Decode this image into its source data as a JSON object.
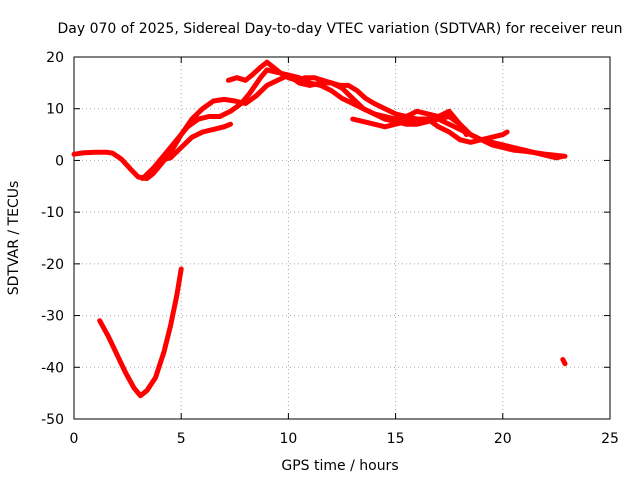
{
  "chart_data": {
    "type": "line",
    "title": "Day 070 of 2025, Sidereal Day-to-day VTEC variation (SDTVAR) for receiver reun",
    "xlabel": "GPS time / hours",
    "ylabel": "SDTVAR / TECUs",
    "xlim": [
      0,
      25
    ],
    "ylim": [
      -50,
      20
    ],
    "xticks": [
      0,
      5,
      10,
      15,
      20,
      25
    ],
    "yticks": [
      -50,
      -40,
      -30,
      -20,
      -10,
      0,
      10,
      20
    ],
    "grid": true,
    "series_color": "#ff0000",
    "series": [
      {
        "name": "trace-1",
        "points": [
          [
            0,
            1.2
          ],
          [
            0.5,
            1.5
          ],
          [
            1,
            1.6
          ],
          [
            1.5,
            1.6
          ],
          [
            1.8,
            1.4
          ],
          [
            2.2,
            0.3
          ],
          [
            2.6,
            -1.5
          ],
          [
            3,
            -3.2
          ],
          [
            3.4,
            -3.5
          ],
          [
            3.7,
            -2.5
          ],
          [
            4,
            -1
          ],
          [
            4.5,
            1.5
          ],
          [
            5,
            5
          ],
          [
            5.5,
            8
          ],
          [
            6,
            10
          ],
          [
            6.5,
            11.5
          ],
          [
            7,
            11.8
          ],
          [
            7.5,
            11.5
          ],
          [
            8,
            11
          ],
          [
            8.5,
            12.5
          ],
          [
            9,
            14.5
          ],
          [
            9.5,
            15.5
          ],
          [
            10,
            16.5
          ],
          [
            10.5,
            16
          ],
          [
            11,
            15
          ],
          [
            11.5,
            14.5
          ],
          [
            12,
            13.5
          ],
          [
            12.5,
            12
          ],
          [
            13,
            11
          ],
          [
            13.5,
            10
          ],
          [
            14,
            9
          ],
          [
            14.5,
            8
          ],
          [
            15,
            7.5
          ],
          [
            15.5,
            7
          ],
          [
            16,
            7
          ],
          [
            16.5,
            7.5
          ],
          [
            17,
            8
          ],
          [
            17.5,
            7
          ],
          [
            18,
            6
          ],
          [
            18.5,
            5
          ],
          [
            19,
            4
          ],
          [
            19.5,
            3
          ],
          [
            20,
            2.5
          ],
          [
            20.5,
            2
          ],
          [
            21,
            1.8
          ],
          [
            21.5,
            1.5
          ],
          [
            22,
            1.2
          ],
          [
            22.5,
            1
          ],
          [
            22.9,
            0.8
          ]
        ]
      },
      {
        "name": "trace-2",
        "points": [
          [
            3.2,
            -3.5
          ],
          [
            3.7,
            -1.5
          ],
          [
            4.2,
            1
          ],
          [
            4.8,
            4
          ],
          [
            5.3,
            6.5
          ],
          [
            5.8,
            8
          ],
          [
            6.3,
            8.5
          ],
          [
            6.8,
            8.5
          ],
          [
            7.3,
            9.5
          ],
          [
            7.8,
            11
          ],
          [
            8.2,
            13
          ],
          [
            8.7,
            16
          ],
          [
            9,
            17.5
          ],
          [
            9.5,
            17
          ],
          [
            10,
            16.5
          ],
          [
            10.5,
            15
          ],
          [
            11,
            14.5
          ],
          [
            11.5,
            15
          ],
          [
            12,
            15
          ],
          [
            12.5,
            14
          ],
          [
            13,
            12
          ],
          [
            13.5,
            10
          ],
          [
            14,
            9
          ],
          [
            14.5,
            8.5
          ],
          [
            15,
            8
          ],
          [
            15.5,
            8.5
          ],
          [
            16,
            9.5
          ],
          [
            16.5,
            9
          ],
          [
            17,
            8.5
          ],
          [
            17.5,
            9.5
          ],
          [
            18,
            7
          ],
          [
            18.5,
            5
          ],
          [
            19,
            4
          ],
          [
            19.5,
            3.5
          ],
          [
            20,
            3
          ],
          [
            20.5,
            2.5
          ],
          [
            21,
            2
          ],
          [
            21.5,
            1.5
          ],
          [
            22,
            1
          ],
          [
            22.5,
            0.5
          ],
          [
            22.8,
            0.8
          ]
        ]
      },
      {
        "name": "trace-3",
        "points": [
          [
            4,
            0
          ],
          [
            4.5,
            0.5
          ],
          [
            5,
            2.5
          ],
          [
            5.5,
            4.5
          ],
          [
            6,
            5.5
          ],
          [
            6.5,
            6
          ],
          [
            7,
            6.5
          ],
          [
            7.3,
            7
          ]
        ]
      },
      {
        "name": "trace-4",
        "points": [
          [
            7.2,
            15.5
          ],
          [
            7.6,
            16
          ],
          [
            8,
            15.5
          ],
          [
            8.3,
            16.5
          ],
          [
            8.7,
            18
          ],
          [
            9,
            19
          ],
          [
            9.3,
            18
          ],
          [
            9.6,
            17
          ],
          [
            10,
            16
          ],
          [
            10.4,
            15.5
          ],
          [
            10.8,
            16
          ],
          [
            11.2,
            16
          ],
          [
            11.6,
            15.5
          ],
          [
            12,
            15
          ],
          [
            12.4,
            14.5
          ],
          [
            12.8,
            14.5
          ],
          [
            13.2,
            13.5
          ],
          [
            13.6,
            12
          ],
          [
            14,
            11
          ],
          [
            14.5,
            10
          ],
          [
            15,
            9
          ],
          [
            15.5,
            8.5
          ],
          [
            16,
            8
          ],
          [
            16.5,
            8
          ],
          [
            17,
            8
          ],
          [
            17.5,
            8.5
          ],
          [
            18,
            7
          ],
          [
            18.3,
            5
          ]
        ]
      },
      {
        "name": "trace-5",
        "points": [
          [
            13,
            8
          ],
          [
            13.5,
            7.5
          ],
          [
            14,
            7
          ],
          [
            14.5,
            6.5
          ],
          [
            15,
            7
          ],
          [
            15.5,
            7.5
          ],
          [
            16,
            8
          ],
          [
            16.5,
            8
          ],
          [
            17,
            6.5
          ],
          [
            17.5,
            5.5
          ],
          [
            18,
            4
          ],
          [
            18.5,
            3.5
          ],
          [
            19,
            4
          ],
          [
            19.5,
            4.5
          ],
          [
            20,
            5
          ],
          [
            20.2,
            5.5
          ]
        ]
      },
      {
        "name": "trace-6",
        "points": [
          [
            1.2,
            -31
          ],
          [
            1.6,
            -34
          ],
          [
            2,
            -37.5
          ],
          [
            2.4,
            -41
          ],
          [
            2.8,
            -44
          ],
          [
            3.1,
            -45.5
          ],
          [
            3.4,
            -44.5
          ],
          [
            3.8,
            -42
          ],
          [
            4.2,
            -37
          ],
          [
            4.5,
            -32
          ],
          [
            4.8,
            -26
          ],
          [
            5,
            -21
          ]
        ]
      },
      {
        "name": "trace-7",
        "points": [
          [
            22.8,
            -38.5
          ],
          [
            22.9,
            -39.3
          ]
        ]
      }
    ]
  }
}
